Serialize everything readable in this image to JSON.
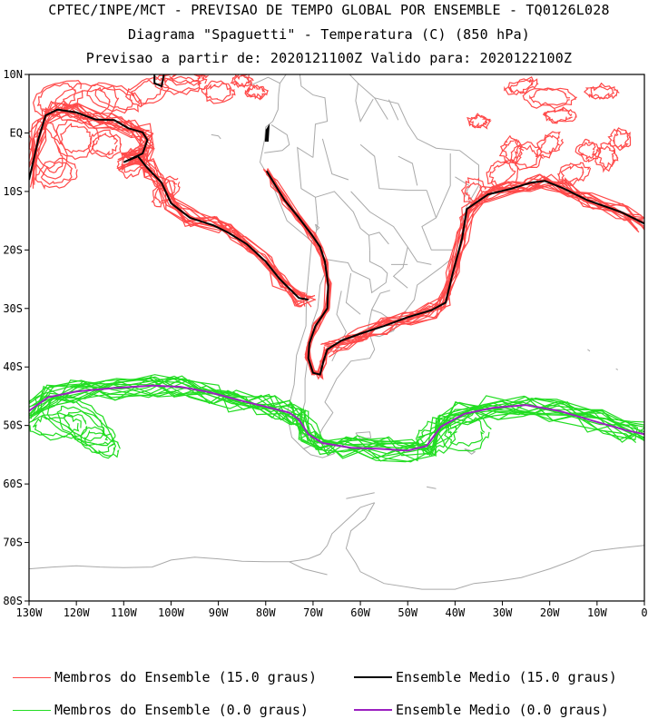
{
  "titles": {
    "line1": "CPTEC/INPE/MCT - PREVISAO DE TEMPO GLOBAL POR ENSEMBLE - TQ0126L028",
    "line2": "Diagrama \"Spaguetti\" - Temperatura (C) (850 hPa)",
    "line3": "Previsao a partir de: 2020121100Z  Valido para: 2020122100Z"
  },
  "axes": {
    "lat_labels": [
      "10N",
      "EQ",
      "10S",
      "20S",
      "30S",
      "40S",
      "50S",
      "60S",
      "70S",
      "80S"
    ],
    "lat_values": [
      10,
      0,
      -10,
      -20,
      -30,
      -40,
      -50,
      -60,
      -70,
      -80
    ],
    "lon_labels": [
      "130W",
      "120W",
      "110W",
      "100W",
      "90W",
      "80W",
      "70W",
      "60W",
      "50W",
      "40W",
      "30W",
      "20W",
      "10W",
      "0"
    ],
    "lon_values": [
      -130,
      -120,
      -110,
      -100,
      -90,
      -80,
      -70,
      -60,
      -50,
      -40,
      -30,
      -20,
      -10,
      0
    ],
    "lon_range": [
      -130,
      0
    ],
    "lat_range": [
      -80,
      10
    ]
  },
  "colors": {
    "member_15": "#ff4a4a",
    "mean_15": "#000000",
    "member_0": "#22dd22",
    "mean_0": "#9b20c0",
    "coast": "#a9a9a9"
  },
  "legend": {
    "member_15": "Membros do Ensemble (15.0 graus)",
    "mean_15": "Ensemble Medio (15.0 graus)",
    "member_0": "Membros do Ensemble (0.0 graus)",
    "mean_0": "Ensemble Medio (0.0 graus)"
  }
}
